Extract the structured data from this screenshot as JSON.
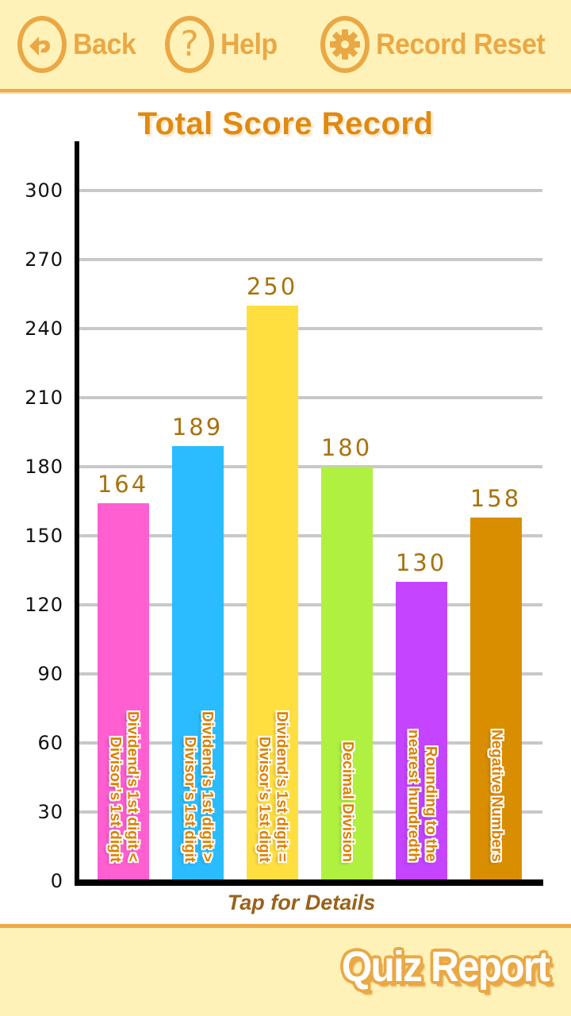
{
  "header": {
    "back_label": "Back",
    "help_label": "Help",
    "reset_label": "Record Reset",
    "back_icon": "back-arrow-icon",
    "help_icon": "question-mark-icon",
    "reset_icon": "gear-icon"
  },
  "title": "Total Score Record",
  "tap_hint": "Tap for Details",
  "footer": {
    "label": "Quiz Report"
  },
  "colors": {
    "header_bg": "#fff2b8",
    "accent": "#eaa845",
    "title": "#e08a10",
    "value_text": "#a8720f"
  },
  "chart_data": {
    "type": "bar",
    "title": "Total Score Record",
    "xlabel": "Tap for Details",
    "ylabel": "",
    "ylim": [
      0,
      300
    ],
    "yticks": [
      0,
      30,
      60,
      90,
      120,
      150,
      180,
      210,
      240,
      270,
      300
    ],
    "grid": true,
    "categories": [
      "Dividend's 1st digit < Divisor's 1st digit",
      "Dividend's 1st digit > Divisor's 1st digit",
      "Dividend's 1st digit = Divisor's 1st digit",
      "Decimal Division",
      "Rounding to the nearest hundredth",
      "Negative Numbers"
    ],
    "label_lines": [
      [
        "Dividend’s 1st digit <",
        "Divisor’s 1st digit"
      ],
      [
        "Dividend’s 1st digit >",
        "Divisor’s 1st digit"
      ],
      [
        "Dividend’s 1st digit =",
        "Divisor’s 1st digit"
      ],
      [
        "Decimal Division"
      ],
      [
        "Rounding to the",
        "nearest hundredth"
      ],
      [
        "Negative Numbers"
      ]
    ],
    "values": [
      164,
      189,
      250,
      180,
      130,
      158
    ],
    "bar_colors": [
      "#ff5fd0",
      "#2bbcff",
      "#ffdf40",
      "#b0f040",
      "#c444ff",
      "#d98e00"
    ]
  }
}
